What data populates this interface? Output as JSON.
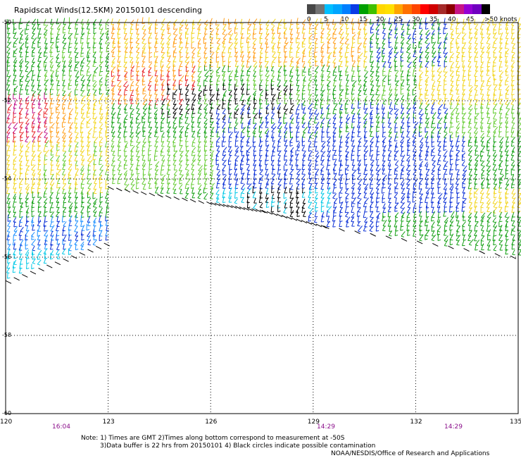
{
  "title": "Rapidscat Winds(12.5KM) 20150101 descending",
  "legend": {
    "colors": [
      "#474747",
      "#737373",
      "#00bfff",
      "#00a5ff",
      "#007fff",
      "#0a3be6",
      "#00a000",
      "#40c000",
      "#ffd700",
      "#ffe000",
      "#ffa500",
      "#ff7000",
      "#ff4500",
      "#ff0000",
      "#d00000",
      "#a52a2a",
      "#8b0000",
      "#c71585",
      "#9400d3",
      "#7000c0",
      "#000000"
    ],
    "labels": [
      "0",
      "5",
      "10",
      "15",
      "20",
      "25",
      "30",
      "35",
      "40",
      "45",
      ">50 knots"
    ],
    "unit": "knots"
  },
  "axes": {
    "x_ticks": [
      "120",
      "123",
      "126",
      "129",
      "132",
      "135"
    ],
    "y_ticks": [
      "-50",
      "-52",
      "-54",
      "-56",
      "-58",
      "-60"
    ],
    "lon_range": [
      120,
      135
    ],
    "lat_range": [
      -60,
      -50
    ],
    "grid": "dotted"
  },
  "times": [
    "16:04",
    "14:29",
    "14:29"
  ],
  "note_line1": "Note: 1) Times are GMT  2)Times along bottom correspond to measurement at -50S",
  "note_line2": "3)Data buffer is 22 hrs from 20150101  4) Black circles indicate possible contamination",
  "credit": "NOAA/NESDIS/Office of Research and Applications",
  "palette": {
    "calm": "#000000",
    "cyan": "#00c8e6",
    "lightblue": "#1e90ff",
    "blue": "#0a2fd6",
    "green": "#14a014",
    "lightgreen": "#66cc33",
    "yellow": "#f2d51e",
    "orange": "#ff9e1a",
    "red": "#e8262b",
    "magenta": "#c0158c"
  }
}
